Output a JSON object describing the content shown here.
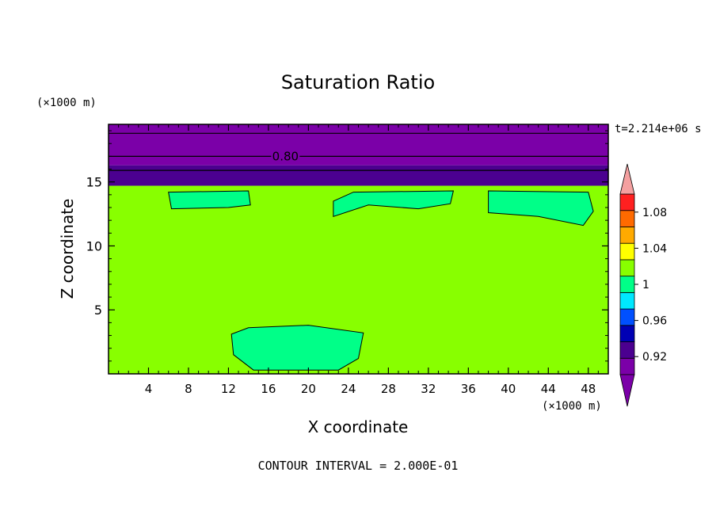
{
  "chart_data": {
    "type": "contour",
    "title": "Saturation Ratio",
    "xlabel": "X coordinate",
    "ylabel": "Z coordinate",
    "x_unit": "(×1000 m)",
    "y_unit": "(×1000 m)",
    "time_label": "t=2.214e+06 s",
    "footer": "CONTOUR INTERVAL = 2.000E-01",
    "xlim": [
      0,
      50
    ],
    "ylim": [
      0,
      19.5
    ],
    "x_ticks": [
      4,
      8,
      12,
      16,
      20,
      24,
      28,
      32,
      36,
      40,
      44,
      48
    ],
    "y_ticks": [
      5,
      10,
      15
    ],
    "contour_lines": [
      {
        "level": 0.8,
        "z": 17.0,
        "label": "0.80"
      },
      {
        "z": 18.8
      },
      {
        "z": 15.9
      }
    ],
    "regions": [
      {
        "name": "upper-layer",
        "z": [
          16.3,
          19.5
        ],
        "color": "#7b00a8"
      },
      {
        "name": "transition-band",
        "z": [
          14.7,
          16.3
        ],
        "color": "#4b0090"
      },
      {
        "name": "main-layer",
        "z": [
          0,
          14.7
        ],
        "color": "#88ff00"
      }
    ],
    "patches_color": "#00ff88",
    "patches": [
      {
        "name": "upper-left-patch",
        "pts": [
          [
            6.0,
            14.2
          ],
          [
            14.0,
            14.3
          ],
          [
            14.2,
            13.2
          ],
          [
            12.0,
            13.0
          ],
          [
            6.3,
            12.9
          ]
        ]
      },
      {
        "name": "upper-mid-patch",
        "pts": [
          [
            22.5,
            13.5
          ],
          [
            24.5,
            14.2
          ],
          [
            34.5,
            14.3
          ],
          [
            34.2,
            13.3
          ],
          [
            31.0,
            12.9
          ],
          [
            26.0,
            13.2
          ],
          [
            22.5,
            12.3
          ]
        ]
      },
      {
        "name": "upper-right-patch",
        "pts": [
          [
            38.0,
            14.3
          ],
          [
            48.0,
            14.2
          ],
          [
            48.5,
            12.7
          ],
          [
            47.5,
            11.6
          ],
          [
            43.0,
            12.3
          ],
          [
            38.0,
            12.6
          ]
        ]
      },
      {
        "name": "lower-mid-patch",
        "pts": [
          [
            12.3,
            3.1
          ],
          [
            14.0,
            3.6
          ],
          [
            20.0,
            3.8
          ],
          [
            25.5,
            3.2
          ],
          [
            25.0,
            1.2
          ],
          [
            23.0,
            0.3
          ],
          [
            14.5,
            0.3
          ],
          [
            12.5,
            1.5
          ]
        ]
      }
    ],
    "colorbar": {
      "levels": [
        0.9,
        0.92,
        0.94,
        0.96,
        0.98,
        1.0,
        1.02,
        1.04,
        1.06,
        1.08,
        1.1
      ],
      "colors": [
        "#7b00a8",
        "#4b0090",
        "#0000b4",
        "#0050ff",
        "#00e8ff",
        "#00ff88",
        "#88ff00",
        "#ffff00",
        "#ffaa00",
        "#ff6a00",
        "#ff2020"
      ],
      "under_color": "#7b00a8",
      "over_color": "#f4a0a0",
      "tick_labels": [
        "0.92",
        "0.96",
        "1",
        "1.04",
        "1.08"
      ]
    }
  }
}
